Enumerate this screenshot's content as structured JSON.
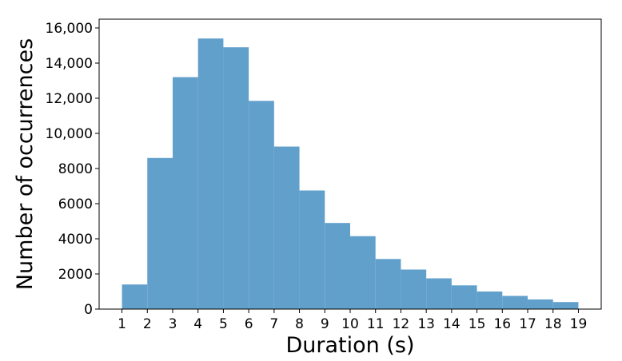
{
  "chart_data": {
    "type": "bar",
    "title": "",
    "xlabel": "Duration (s)",
    "ylabel": "Number of occurrences",
    "bin_edges": [
      1,
      2,
      3,
      4,
      5,
      6,
      7,
      8,
      9,
      10,
      11,
      12,
      13,
      14,
      15,
      16,
      17,
      18,
      19
    ],
    "values": [
      1400,
      8600,
      13200,
      15400,
      14900,
      11850,
      9250,
      6750,
      4900,
      4150,
      2850,
      2250,
      1750,
      1350,
      1000,
      750,
      550,
      400
    ],
    "xlim": [
      0.1,
      19.9
    ],
    "ylim": [
      0,
      16500
    ],
    "x_ticks": [
      {
        "value": 1,
        "label": "1"
      },
      {
        "value": 2,
        "label": "2"
      },
      {
        "value": 3,
        "label": "3"
      },
      {
        "value": 4,
        "label": "4"
      },
      {
        "value": 5,
        "label": "5"
      },
      {
        "value": 6,
        "label": "6"
      },
      {
        "value": 7,
        "label": "7"
      },
      {
        "value": 8,
        "label": "8"
      },
      {
        "value": 9,
        "label": "9"
      },
      {
        "value": 10,
        "label": "10"
      },
      {
        "value": 11,
        "label": "11"
      },
      {
        "value": 12,
        "label": "12"
      },
      {
        "value": 13,
        "label": "13"
      },
      {
        "value": 14,
        "label": "14"
      },
      {
        "value": 15,
        "label": "15"
      },
      {
        "value": 16,
        "label": "16"
      },
      {
        "value": 17,
        "label": "17"
      },
      {
        "value": 18,
        "label": "18"
      },
      {
        "value": 19,
        "label": "19"
      }
    ],
    "y_ticks": [
      {
        "value": 0,
        "label": "0"
      },
      {
        "value": 2000,
        "label": "2000"
      },
      {
        "value": 4000,
        "label": "4000"
      },
      {
        "value": 6000,
        "label": "6000"
      },
      {
        "value": 8000,
        "label": "8000"
      },
      {
        "value": 10000,
        "label": "10,000"
      },
      {
        "value": 12000,
        "label": "12,000"
      },
      {
        "value": 14000,
        "label": "14,000"
      },
      {
        "value": 16000,
        "label": "16,000"
      }
    ],
    "bar_color": "#62a0cc",
    "grid": false,
    "legend": "none"
  }
}
